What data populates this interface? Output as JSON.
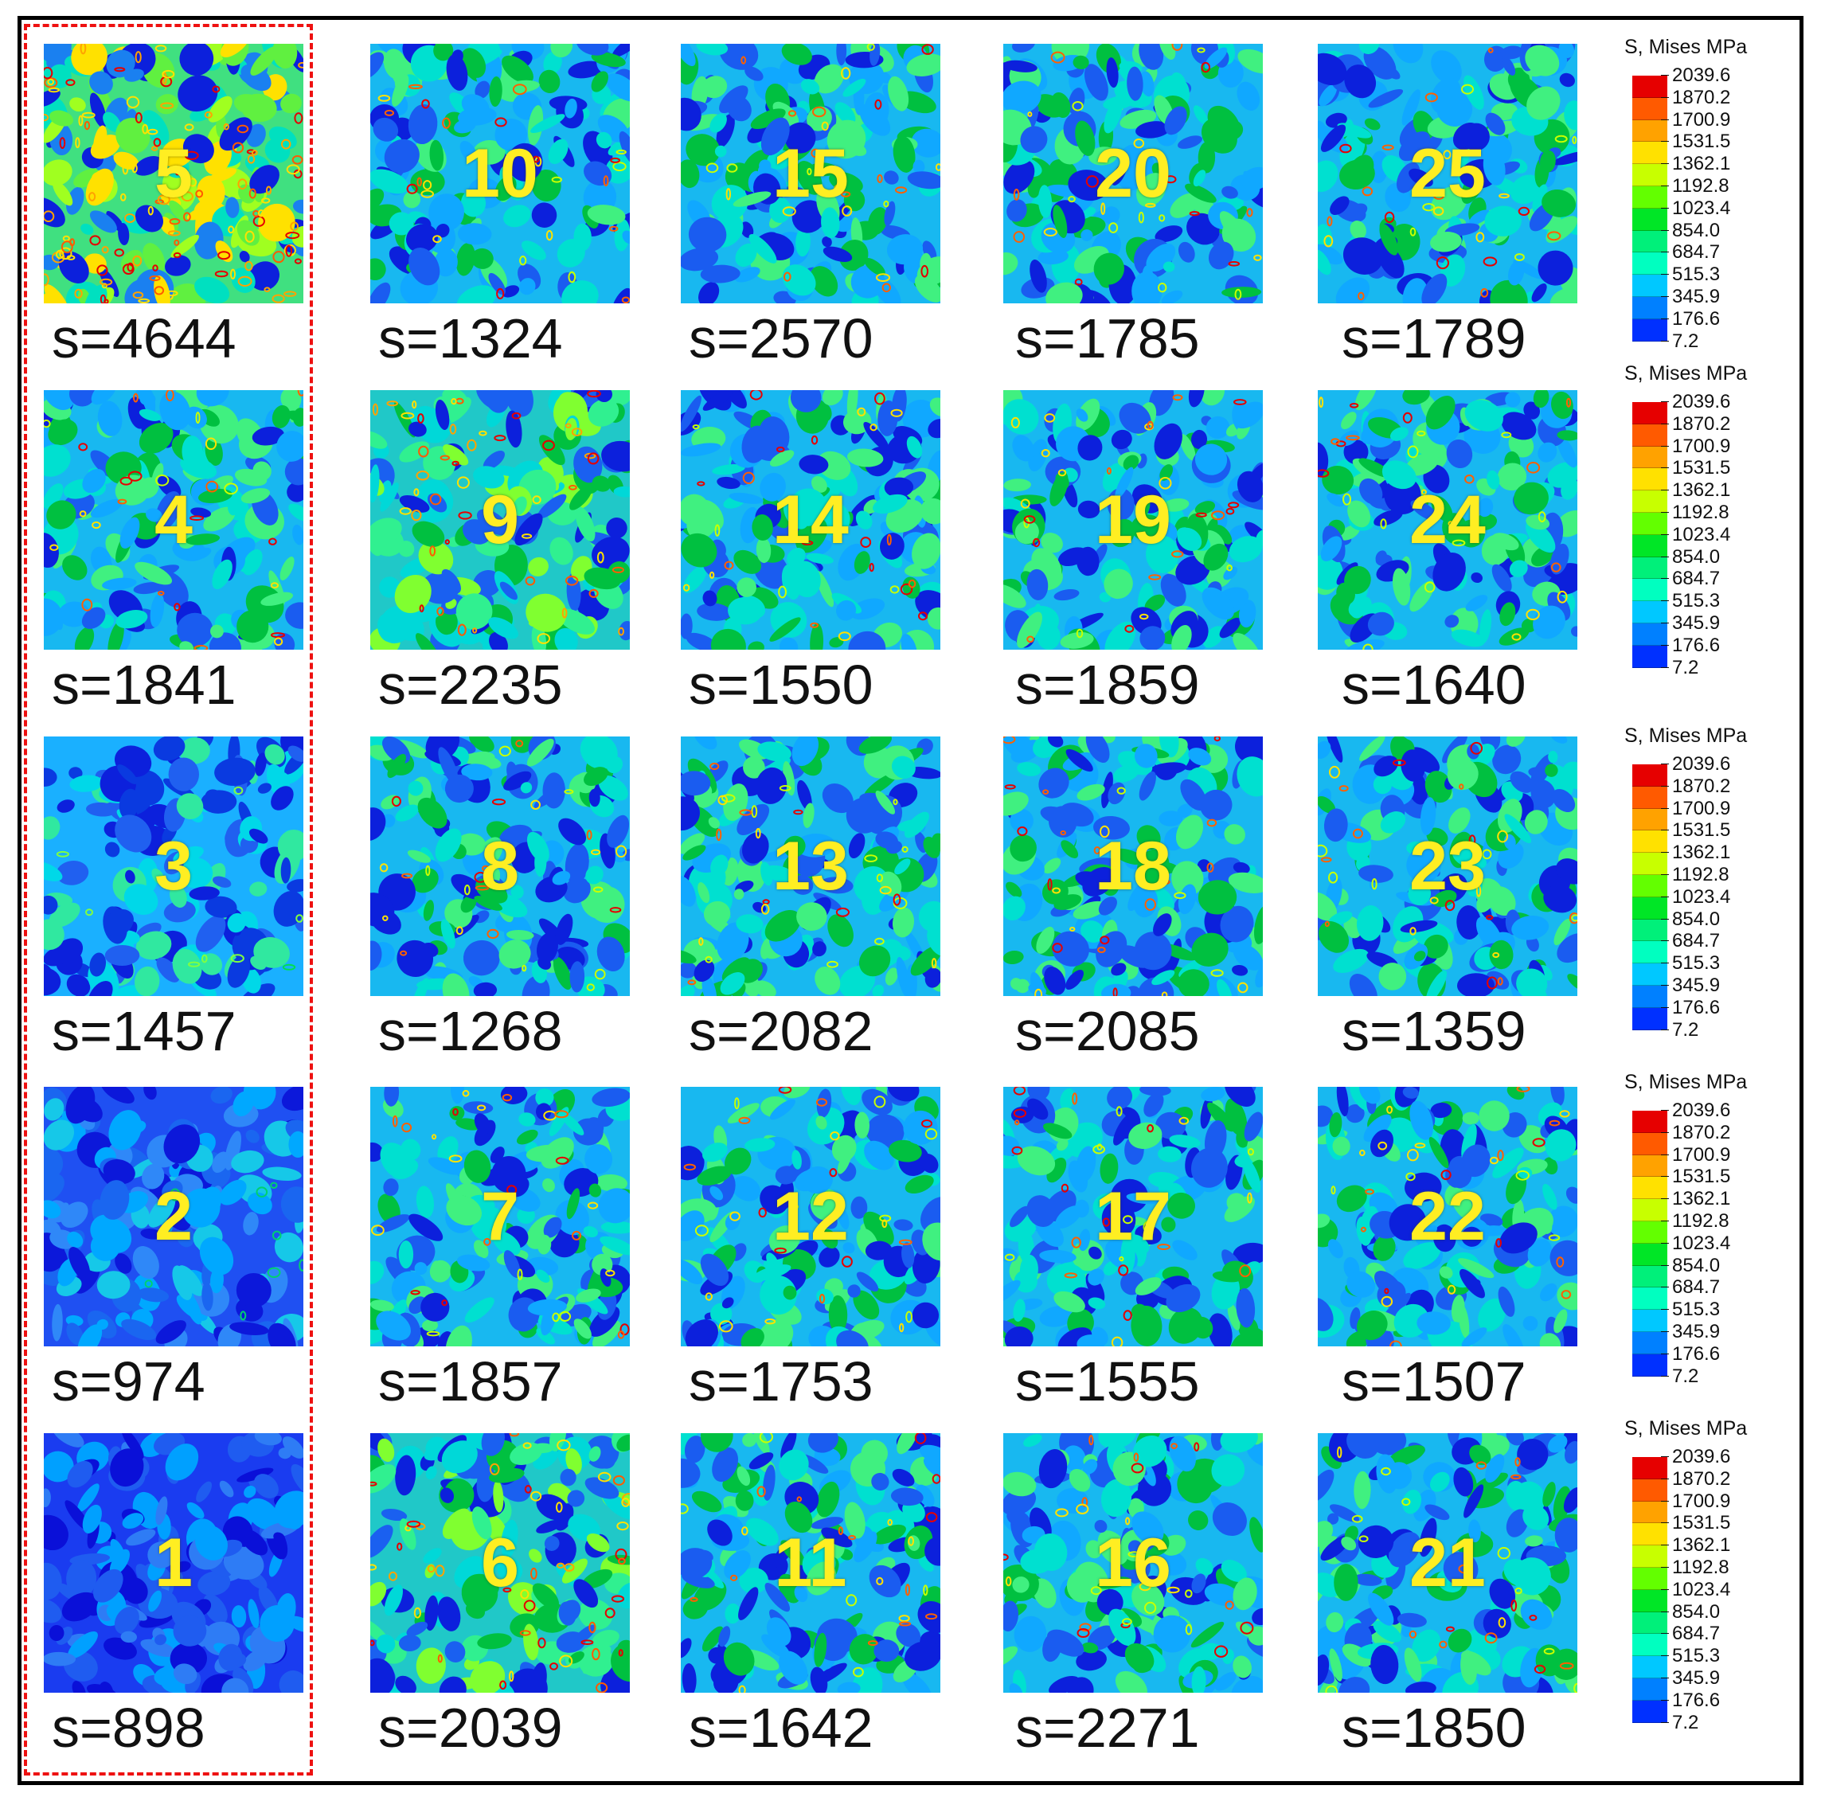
{
  "tiles": [
    {
      "id": "5",
      "s": "s=4644",
      "tone": "hot"
    },
    {
      "id": "10",
      "s": "s=1324",
      "tone": "mid"
    },
    {
      "id": "15",
      "s": "s=2570",
      "tone": "mid"
    },
    {
      "id": "20",
      "s": "s=1785",
      "tone": "mid"
    },
    {
      "id": "25",
      "s": "s=1789",
      "tone": "mid"
    },
    {
      "id": "4",
      "s": "s=1841",
      "tone": "mid"
    },
    {
      "id": "9",
      "s": "s=2235",
      "tone": "warm"
    },
    {
      "id": "14",
      "s": "s=1550",
      "tone": "mid"
    },
    {
      "id": "19",
      "s": "s=1859",
      "tone": "mid"
    },
    {
      "id": "24",
      "s": "s=1640",
      "tone": "mid"
    },
    {
      "id": "3",
      "s": "s=1457",
      "tone": "cool"
    },
    {
      "id": "8",
      "s": "s=1268",
      "tone": "mid"
    },
    {
      "id": "13",
      "s": "s=2082",
      "tone": "mid"
    },
    {
      "id": "18",
      "s": "s=2085",
      "tone": "mid"
    },
    {
      "id": "23",
      "s": "s=1359",
      "tone": "mid"
    },
    {
      "id": "2",
      "s": "s=974",
      "tone": "cold"
    },
    {
      "id": "7",
      "s": "s=1857",
      "tone": "mid"
    },
    {
      "id": "12",
      "s": "s=1753",
      "tone": "mid"
    },
    {
      "id": "17",
      "s": "s=1555",
      "tone": "mid"
    },
    {
      "id": "22",
      "s": "s=1507",
      "tone": "mid"
    },
    {
      "id": "1",
      "s": "s=898",
      "tone": "coldest"
    },
    {
      "id": "6",
      "s": "s=2039",
      "tone": "warm"
    },
    {
      "id": "11",
      "s": "s=1642",
      "tone": "mid"
    },
    {
      "id": "16",
      "s": "s=2271",
      "tone": "mid"
    },
    {
      "id": "21",
      "s": "s=1850",
      "tone": "mid"
    }
  ],
  "legend": {
    "title": "S, Mises MPa",
    "ticks": [
      "2039.6",
      "1870.2",
      "1700.9",
      "1531.5",
      "1362.1",
      "1192.8",
      "1023.4",
      "854.0",
      "684.7",
      "515.3",
      "345.9",
      "176.6",
      "7.2"
    ],
    "colors": [
      "#e60000",
      "#ff5a00",
      "#ffa200",
      "#ffe100",
      "#c8ff00",
      "#63ff00",
      "#00e626",
      "#00f07a",
      "#00ffc0",
      "#00c8ff",
      "#0080ff",
      "#0030ff"
    ]
  }
}
